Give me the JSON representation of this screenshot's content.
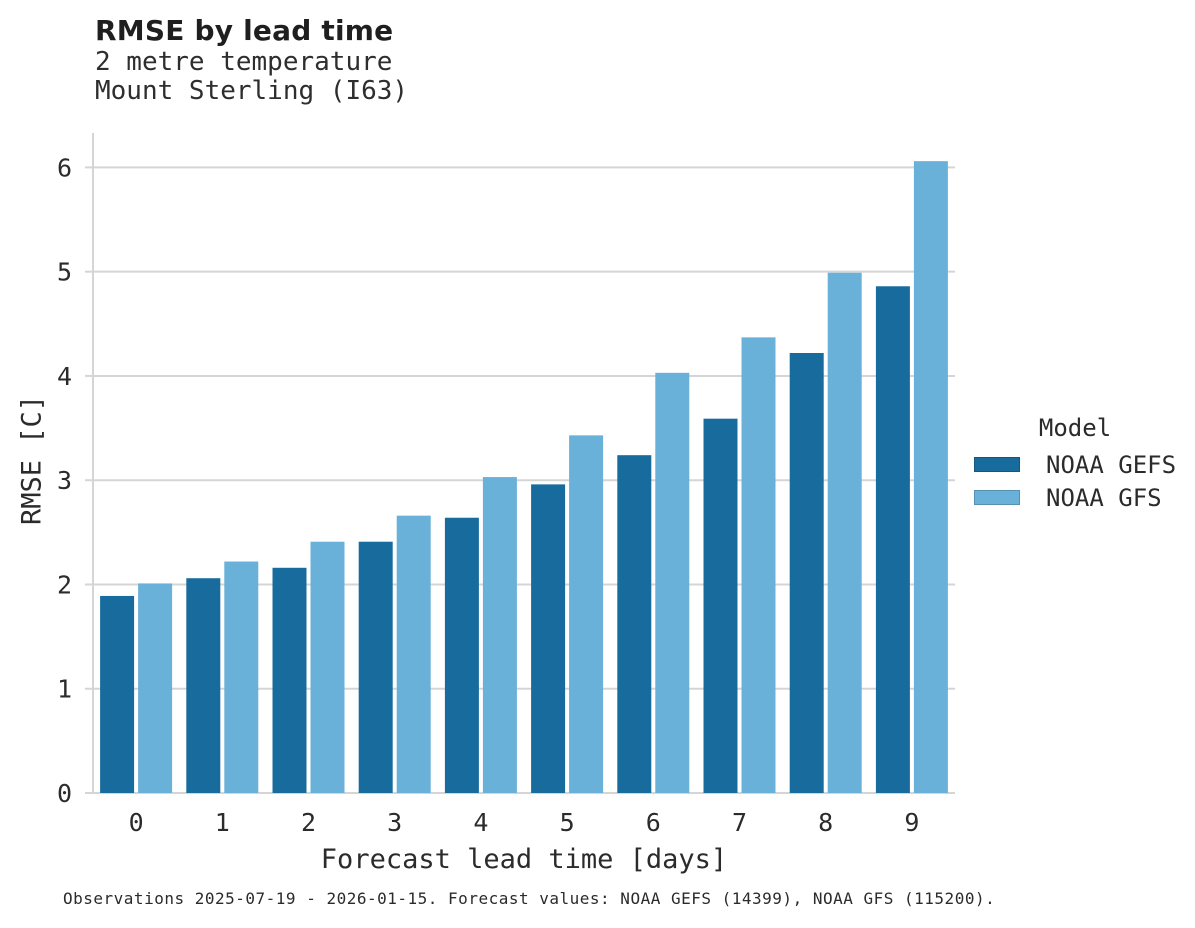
{
  "header": {
    "title": "RMSE by lead time",
    "subtitle_line1": "2 metre temperature",
    "subtitle_line2": "Mount Sterling (I63)"
  },
  "chart_data": {
    "type": "bar",
    "title": "RMSE by lead time",
    "subtitle": [
      "2 metre temperature",
      "Mount Sterling (I63)"
    ],
    "categories": [
      "0",
      "1",
      "2",
      "3",
      "4",
      "5",
      "6",
      "7",
      "8",
      "9"
    ],
    "series": [
      {
        "name": "NOAA GEFS",
        "color": "#176c9d",
        "values": [
          1.89,
          2.06,
          2.16,
          2.41,
          2.64,
          2.96,
          3.24,
          3.59,
          4.22,
          4.86
        ]
      },
      {
        "name": "NOAA GFS",
        "color": "#69b1d8",
        "values": [
          2.01,
          2.22,
          2.41,
          2.66,
          3.03,
          3.43,
          4.03,
          4.37,
          4.99,
          6.06
        ]
      }
    ],
    "xlabel": "Forecast lead time [days]",
    "ylabel": "RMSE [C]",
    "ylim": [
      0,
      6.33
    ],
    "yticks": [
      0,
      1,
      2,
      3,
      4,
      5,
      6
    ],
    "grid": "horizontal",
    "legend_title": "Model",
    "legend_position": "right",
    "colors": {
      "grid": "#d5d5d5",
      "axis": "#d5d5d5",
      "text": "#2b2b2b"
    }
  },
  "footer": {
    "text": "Observations 2025-07-19 - 2026-01-15. Forecast values: NOAA GEFS (14399), NOAA GFS (115200)."
  }
}
